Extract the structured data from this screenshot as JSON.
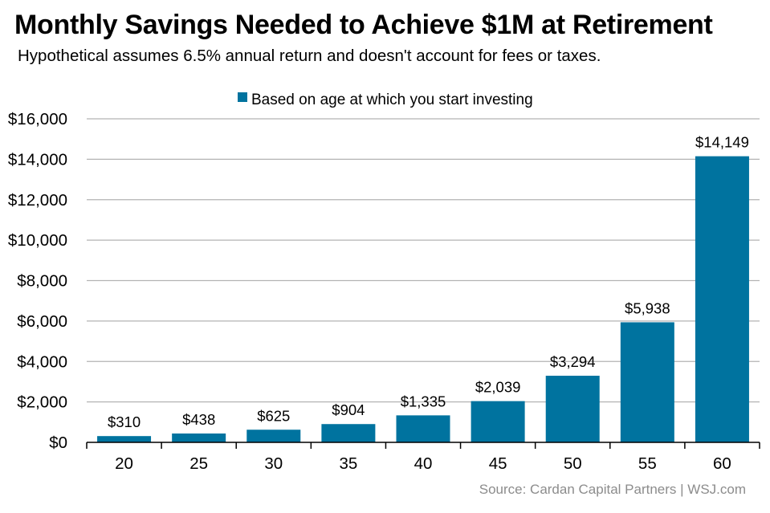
{
  "chart_data": {
    "type": "bar",
    "title": "Monthly Savings Needed to Achieve $1M at Retirement",
    "subtitle": "Hypothetical assumes 6.5% annual return and doesn't account for fees or taxes.",
    "categories": [
      "20",
      "25",
      "30",
      "35",
      "40",
      "45",
      "50",
      "55",
      "60"
    ],
    "series": [
      {
        "name": "Based on age at which you start investing",
        "values": [
          310,
          438,
          625,
          904,
          1335,
          2039,
          3294,
          5938,
          14149
        ],
        "labels": [
          "$310",
          "$438",
          "$625",
          "$904",
          "$1,335",
          "$2,039",
          "$3,294",
          "$5,938",
          "$14,149"
        ]
      }
    ],
    "ylim": [
      0,
      16000
    ],
    "yticks": [
      0,
      2000,
      4000,
      6000,
      8000,
      10000,
      12000,
      14000,
      16000
    ],
    "ytick_labels": [
      "$0",
      "$2,000",
      "$4,000",
      "$6,000",
      "$8,000",
      "$10,000",
      "$12,000",
      "$14,000",
      "$16,000"
    ],
    "xlabel": "",
    "ylabel": "",
    "grid": true,
    "legend_position": "top-center",
    "bar_color": "#00739f",
    "source": "Source: Cardan Capital Partners  |  WSJ.com"
  }
}
